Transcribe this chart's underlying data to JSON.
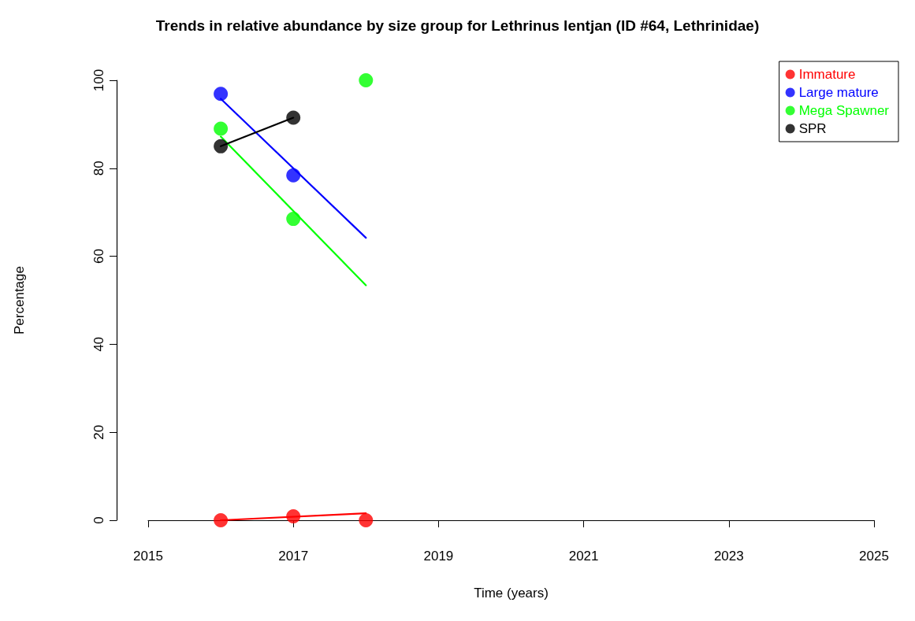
{
  "chart_data": {
    "type": "scatter",
    "title": "Trends in relative abundance by size group for Lethrinus lentjan (ID #64, Lethrinidae)",
    "xlabel": "Time (years)",
    "ylabel": "Percentage",
    "xlim": [
      2015,
      2025
    ],
    "xticks": [
      2015,
      2017,
      2019,
      2021,
      2023,
      2025
    ],
    "ylim": [
      0,
      100
    ],
    "yticks": [
      0,
      20,
      40,
      60,
      80,
      100
    ],
    "grid": false,
    "legend": "top right",
    "marker": "circle",
    "series": [
      {
        "name": "Immature",
        "color": "#ff0000",
        "x": [
          2016,
          2017,
          2018
        ],
        "values": [
          0,
          0.9,
          0
        ]
      },
      {
        "name": "Large mature",
        "color": "#0000ff",
        "x": [
          2016,
          2017
        ],
        "values": [
          96.9,
          78.4
        ]
      },
      {
        "name": "Mega Spawner",
        "color": "#00ff00",
        "x": [
          2016,
          2017,
          2018
        ],
        "values": [
          89.0,
          68.5,
          100
        ]
      },
      {
        "name": "SPR",
        "color": "#000000",
        "x": [
          2016,
          2017
        ],
        "values": [
          85.0,
          91.5
        ]
      },
      {
        "type": "line",
        "marker": "none",
        "color": "#ff0000",
        "x": [
          2016,
          2018
        ],
        "values": [
          0,
          1.6
        ]
      },
      {
        "type": "line",
        "marker": "none",
        "color": "#0000ff",
        "x": [
          2016,
          2018
        ],
        "values": [
          95.8,
          64.2
        ]
      },
      {
        "type": "line",
        "marker": "none",
        "color": "#00ff00",
        "x": [
          2016,
          2018
        ],
        "values": [
          87.2,
          53.4
        ]
      },
      {
        "type": "line",
        "marker": "none",
        "color": "#000000",
        "x": [
          2016,
          2017
        ],
        "values": [
          85.0,
          91.5
        ]
      }
    ]
  }
}
